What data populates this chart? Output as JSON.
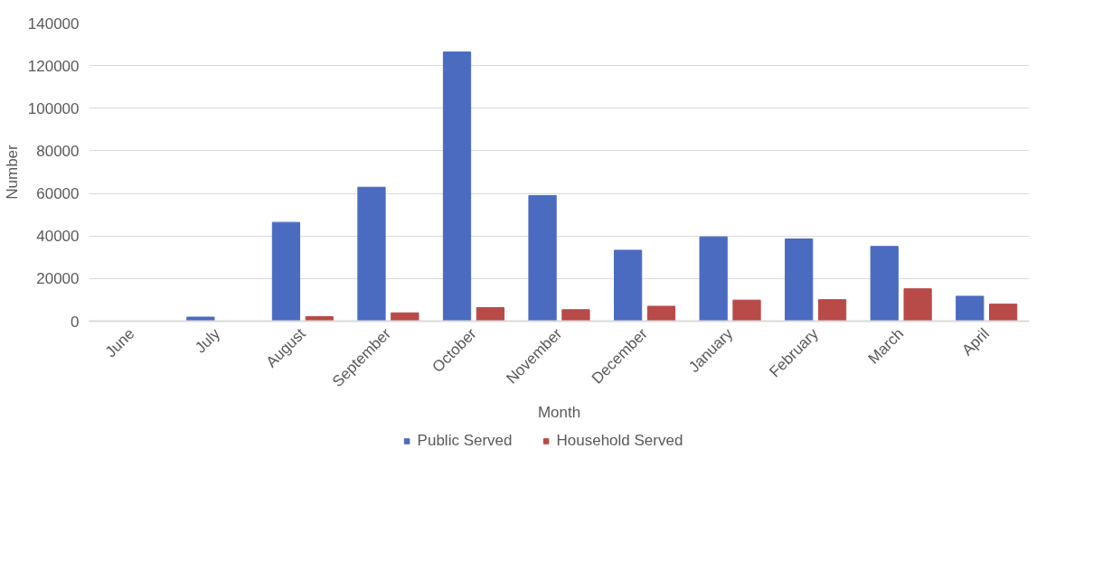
{
  "chart_data": {
    "type": "bar",
    "xlabel": "Month",
    "ylabel": "Number",
    "categories": [
      "June",
      "July",
      "August",
      "September",
      "October",
      "November",
      "December",
      "January",
      "February",
      "March",
      "April"
    ],
    "series": [
      {
        "name": "Public Served",
        "color": "#4a6bc0",
        "values": [
          0,
          1900,
          46400,
          62900,
          126400,
          59000,
          33300,
          39600,
          38600,
          35100,
          11700
        ]
      },
      {
        "name": "Household Served",
        "color": "#b84a48",
        "values": [
          0,
          null,
          2100,
          3900,
          6400,
          5400,
          7000,
          9900,
          10100,
          15200,
          8000
        ]
      }
    ],
    "ylim": [
      0,
      140000
    ],
    "yticks": [
      0,
      20000,
      40000,
      60000,
      80000,
      100000,
      120000,
      140000
    ],
    "grid": "y",
    "legend": "bottom"
  }
}
